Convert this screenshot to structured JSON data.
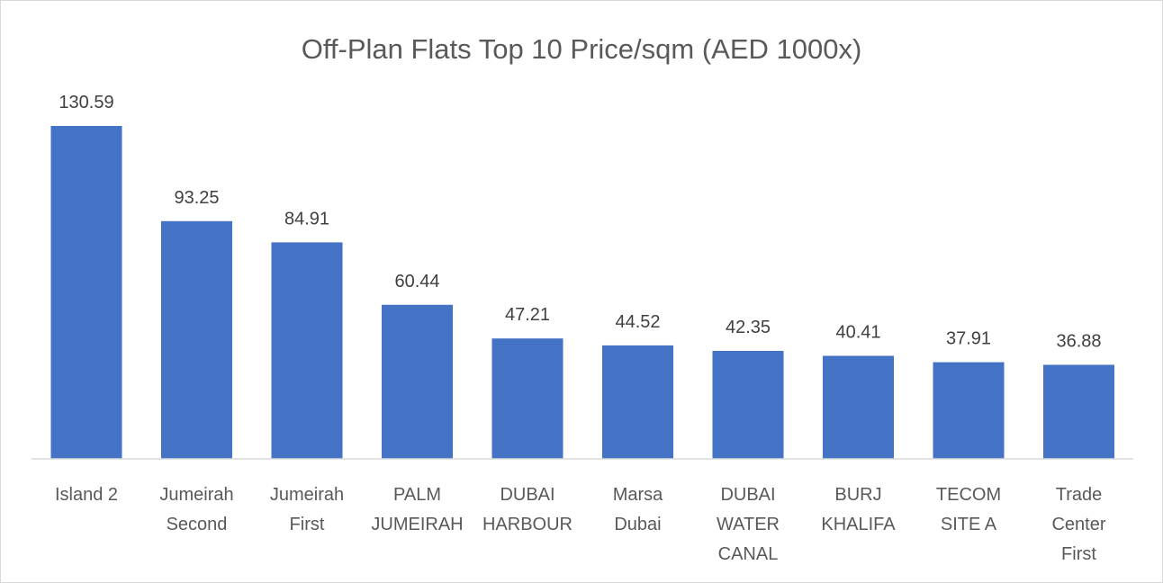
{
  "chart_data": {
    "type": "bar",
    "title": "Off-Plan Flats Top 10 Price/sqm (AED 1000x)",
    "xlabel": "",
    "ylabel": "",
    "ylim": [
      0,
      130.59
    ],
    "grid": false,
    "legend": "none",
    "bar_color": "#4472C4",
    "categories": [
      "Island 2",
      "Jumeirah Second",
      "Jumeirah First",
      "PALM JUMEIRAH",
      "DUBAI HARBOUR",
      "Marsa Dubai",
      "DUBAI WATER CANAL",
      "BURJ KHALIFA",
      "TECOM SITE A",
      "Trade Center First"
    ],
    "category_lines": [
      [
        "Island 2"
      ],
      [
        "Jumeirah",
        "Second"
      ],
      [
        "Jumeirah",
        "First"
      ],
      [
        "PALM",
        "JUMEIRAH"
      ],
      [
        "DUBAI",
        "HARBOUR"
      ],
      [
        "Marsa",
        "Dubai"
      ],
      [
        "DUBAI",
        "WATER",
        "CANAL"
      ],
      [
        "BURJ",
        "KHALIFA"
      ],
      [
        "TECOM",
        "SITE A"
      ],
      [
        "Trade",
        "Center",
        "First"
      ]
    ],
    "values": [
      130.59,
      93.25,
      84.91,
      60.44,
      47.21,
      44.52,
      42.35,
      40.41,
      37.91,
      36.88
    ],
    "value_labels": [
      "130.59",
      "93.25",
      "84.91",
      "60.44",
      "47.21",
      "44.52",
      "42.35",
      "40.41",
      "37.91",
      "36.88"
    ]
  }
}
